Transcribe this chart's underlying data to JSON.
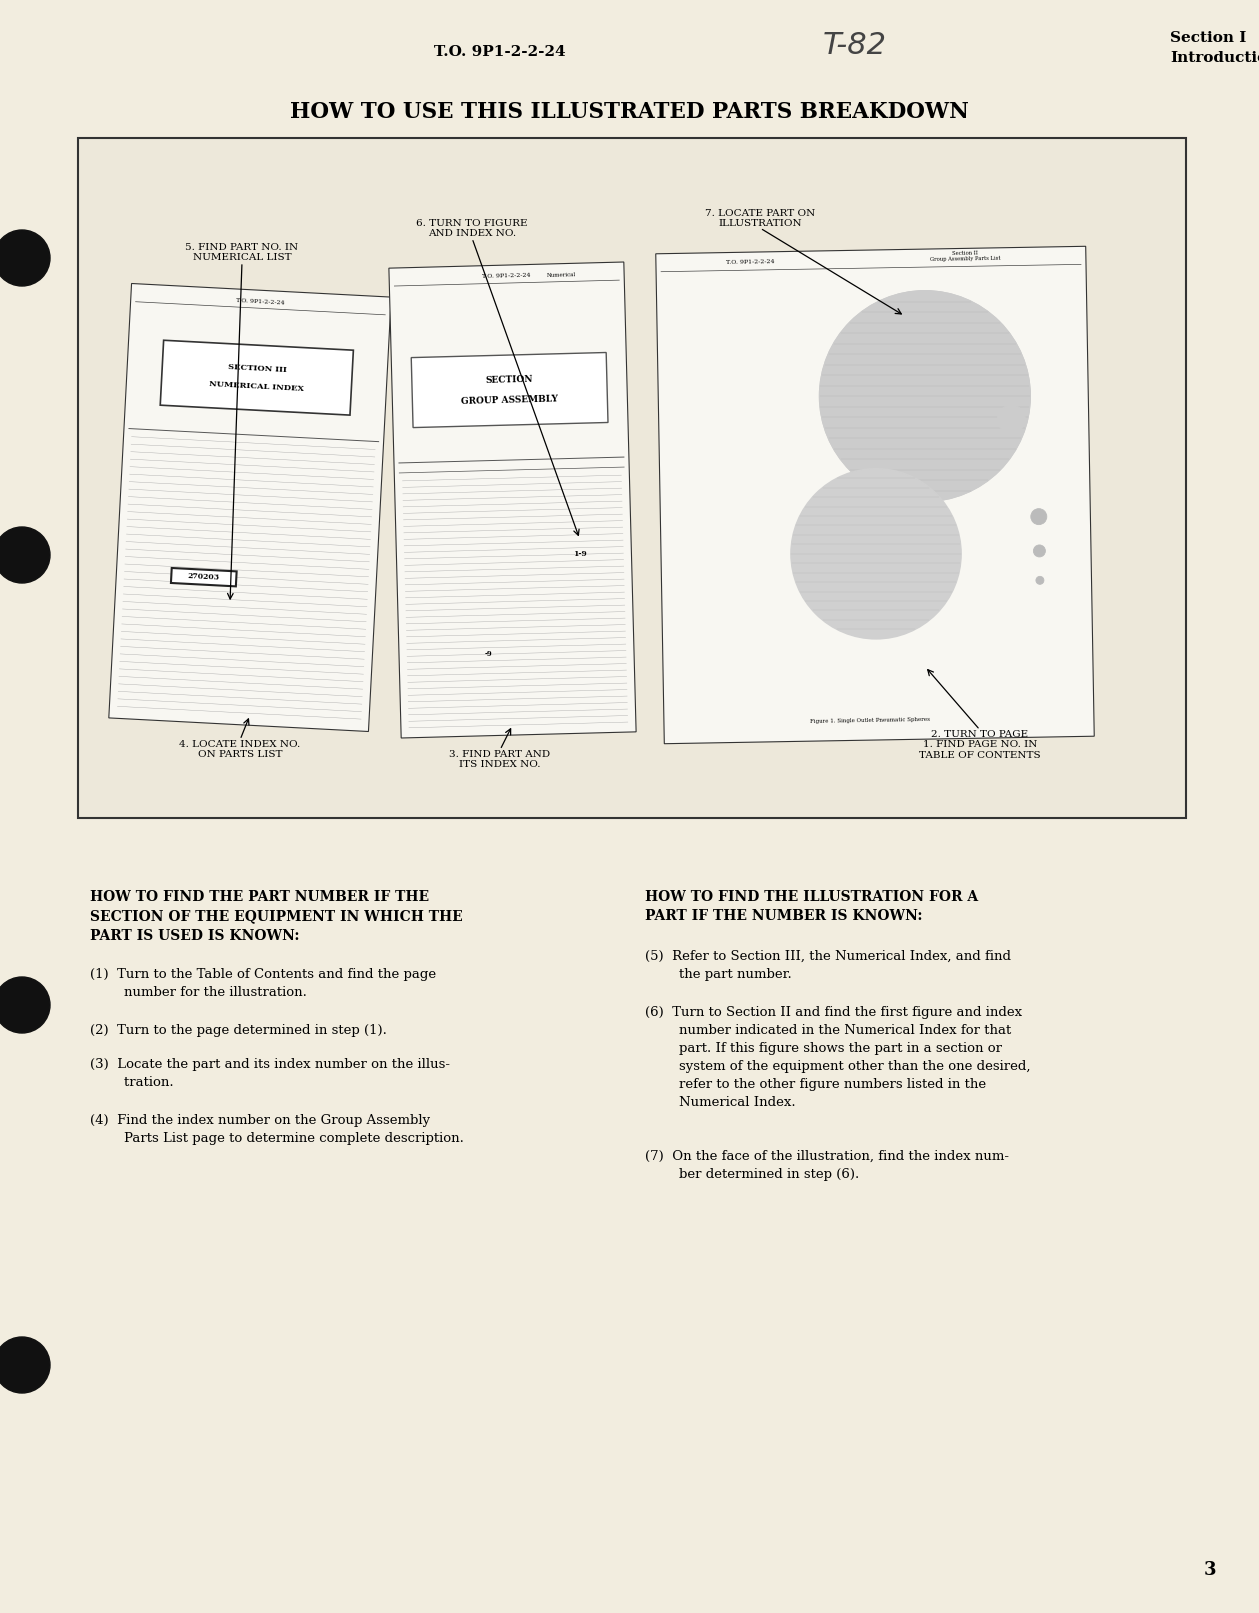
{
  "bg_color": "#f2eddf",
  "header_to": "T.O. 9P1-2-2-24",
  "header_section": "Section I",
  "header_intro": "Introduction",
  "handwritten": "T-82",
  "title": "HOW TO USE THIS ILLUSTRATED PARTS BREAKDOWN",
  "page_number": "3",
  "left_col_title": "HOW TO FIND THE PART NUMBER IF THE\nSECTION OF THE EQUIPMENT IN WHICH THE\nPART IS USED IS KNOWN:",
  "left_items": [
    "(1)  Turn to the Table of Contents and find the page\n        number for the illustration.",
    "(2)  Turn to the page determined in step (1).",
    "(3)  Locate the part and its index number on the illus-\n        tration.",
    "(4)  Find the index number on the Group Assembly\n        Parts List page to determine complete description."
  ],
  "right_col_title": "HOW TO FIND THE ILLUSTRATION FOR A\nPART IF THE NUMBER IS KNOWN:",
  "right_items": [
    "(5)  Refer to Section III, the Numerical Index, and find\n        the part number.",
    "(6)  Turn to Section II and find the first figure and index\n        number indicated in the Numerical Index for that\n        part. If this figure shows the part in a section or\n        system of the equipment other than the one desired,\n        refer to the other figure numbers listed in the\n        Numerical Index.",
    "(7)  On the face of the illustration, find the index num-\n        ber determined in step (6)."
  ],
  "label5": "5. FIND PART NO. IN\nNUMERICAL LIST",
  "label6": "6. TURN TO FIGURE\nAND INDEX NO.",
  "label7": "7. LOCATE PART ON\nILLUSTRATION",
  "label4": "4. LOCATE INDEX NO.\nON PARTS LIST",
  "label3": "3. FIND PART AND\nITS INDEX NO.",
  "label2": "2. TURN TO PAGE\n1. FIND PAGE NO. IN\nTABLE OF CONTENTS"
}
